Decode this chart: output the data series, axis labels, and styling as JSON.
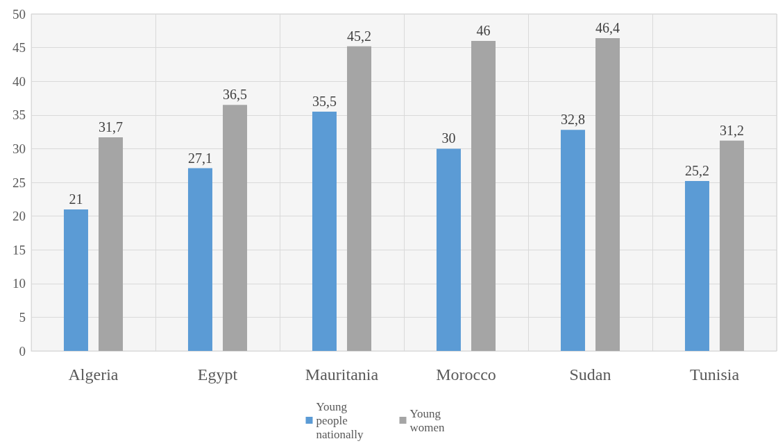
{
  "chart_data": {
    "type": "bar",
    "categories": [
      "Algeria",
      "Egypt",
      "Mauritania",
      "Morocco",
      "Sudan",
      "Tunisia"
    ],
    "series": [
      {
        "name": "Young people nationally",
        "color": "#5b9bd5",
        "values": [
          21,
          27.1,
          35.5,
          30,
          32.8,
          25.2
        ],
        "value_labels": [
          "21",
          "27,1",
          "35,5",
          "30",
          "32,8",
          "25,2"
        ]
      },
      {
        "name": "Young women",
        "color": "#a5a5a5",
        "values": [
          31.7,
          36.5,
          45.2,
          46,
          46.4,
          31.2
        ],
        "value_labels": [
          "31,7",
          "36,5",
          "45,2",
          "46",
          "46,4",
          "31,2"
        ]
      }
    ],
    "ylim": [
      0,
      50
    ],
    "yticks": [
      0,
      5,
      10,
      15,
      20,
      25,
      30,
      35,
      40,
      45,
      50
    ],
    "grid": true,
    "legend": "bottom"
  }
}
